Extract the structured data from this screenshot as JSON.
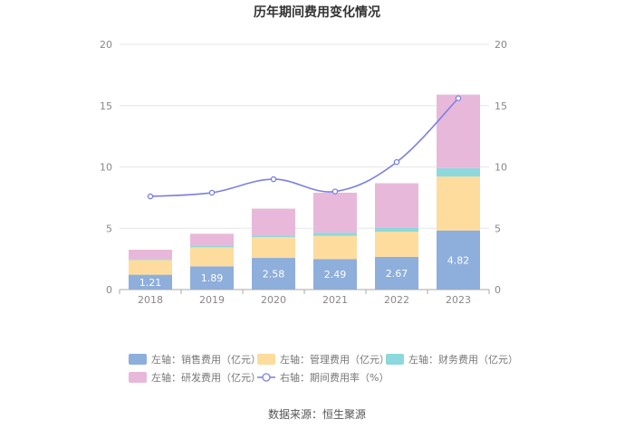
{
  "chart_data": {
    "type": "bar",
    "title": "历年期间费用变化情况",
    "categories": [
      "2018",
      "2019",
      "2020",
      "2021",
      "2022",
      "2023"
    ],
    "series": [
      {
        "name": "左轴：销售费用（亿元）",
        "color": "#8eaedc",
        "values": [
          1.21,
          1.89,
          2.58,
          2.49,
          2.67,
          4.82
        ],
        "show_labels": true
      },
      {
        "name": "左轴：管理费用（亿元）",
        "color": "#fddc9e",
        "values": [
          1.2,
          1.55,
          1.7,
          1.9,
          2.05,
          4.4
        ]
      },
      {
        "name": "左轴：财务费用（亿元）",
        "color": "#8dd8dc",
        "values": [
          0.08,
          0.15,
          0.12,
          0.25,
          0.35,
          0.68
        ]
      },
      {
        "name": "左轴：研发费用（亿元）",
        "color": "#e8b8da",
        "values": [
          0.76,
          0.96,
          2.2,
          3.26,
          3.6,
          6.0
        ]
      }
    ],
    "line": {
      "name": "右轴：期间费用率（%）",
      "color": "#7b7fe3",
      "values": [
        7.6,
        7.9,
        9.0,
        8.0,
        10.4,
        15.6
      ]
    },
    "left_axis": {
      "min": 0,
      "max": 20,
      "ticks": [
        0,
        5,
        10,
        15,
        20
      ]
    },
    "right_axis": {
      "min": 0,
      "max": 20,
      "ticks": [
        0,
        5,
        10,
        15,
        20
      ]
    },
    "source": "数据来源：恒生聚源"
  }
}
